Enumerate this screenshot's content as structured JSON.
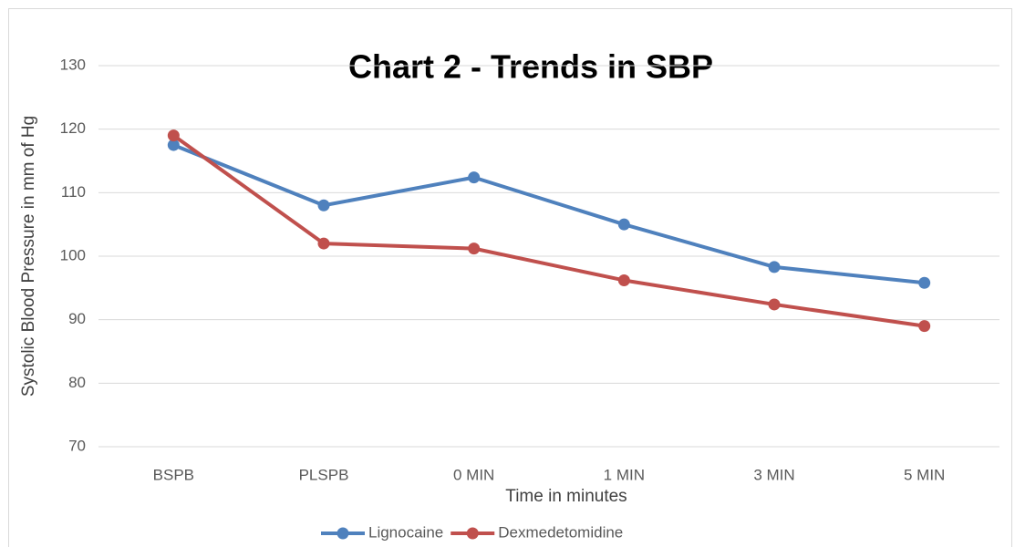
{
  "chart_data": {
    "type": "line",
    "title": "Chart 2 - Trends in SBP",
    "x_label": "Time in minutes",
    "y_label": "Systolic Blood Pressure in mm of Hg",
    "categories": [
      "BSPB",
      "PLSPB",
      "0 MIN",
      "1 MIN",
      "3 MIN",
      "5 MIN"
    ],
    "series": [
      {
        "name": "Lignocaine",
        "color": "#4f81bd",
        "values": [
          117.5,
          108,
          112.4,
          105,
          98.3,
          95.8
        ]
      },
      {
        "name": "Dexmedetomidine",
        "color": "#c0504d",
        "values": [
          119,
          102,
          101.2,
          96.2,
          92.4,
          89
        ]
      }
    ],
    "ylim": [
      70,
      130
    ],
    "yticks": [
      70,
      80,
      90,
      100,
      110,
      120,
      130
    ],
    "grid": true,
    "legend": "bottom"
  }
}
